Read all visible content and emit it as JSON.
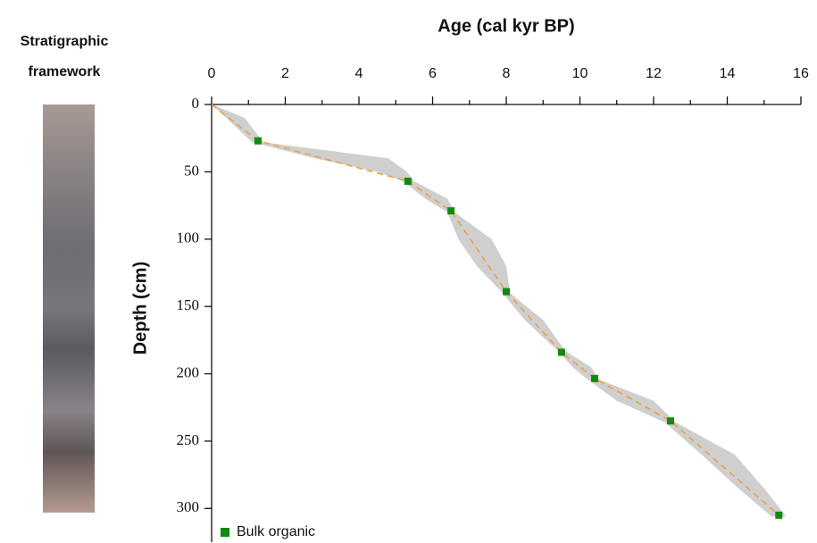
{
  "column_label": [
    "Stratigraphic",
    "framework"
  ],
  "chart_data": {
    "type": "scatter",
    "xlabel": "Age (cal kyr BP)",
    "ylabel": "Depth (cm)",
    "xlim": [
      0,
      16
    ],
    "xticks": [
      0,
      2,
      4,
      6,
      8,
      10,
      12,
      14,
      16
    ],
    "xminorticks": [
      1,
      3,
      5,
      7,
      9,
      11,
      13,
      15
    ],
    "ylim": [
      0,
      325
    ],
    "yticks": [
      0,
      50,
      100,
      150,
      200,
      250,
      300
    ],
    "y_reversed": true,
    "legend": "bottom-left",
    "series": [
      {
        "name": "Bulk organic",
        "color": "#108a10",
        "x": [
          1.26,
          5.33,
          6.5,
          8.0,
          9.5,
          10.4,
          12.46,
          15.4
        ],
        "values": [
          27,
          57,
          79,
          139,
          184,
          203.5,
          235,
          305
        ]
      },
      {
        "color": "#f0a040",
        "dashed": true,
        "x": [
          0,
          1.26,
          5.33,
          6.5,
          8.0,
          9.5,
          10.4,
          12.46,
          15.4
        ],
        "values": [
          0,
          27,
          57,
          79,
          139,
          184,
          203.5,
          235,
          305
        ]
      }
    ],
    "envelope": {
      "color": "#cfcfcf",
      "depth": [
        0,
        10,
        28,
        40,
        50,
        57,
        70,
        80,
        100,
        120,
        140,
        160,
        183,
        195,
        204,
        220,
        236,
        260,
        285,
        306
      ],
      "younger": [
        0,
        0.4,
        1.1,
        2.8,
        4.5,
        5.2,
        5.8,
        6.4,
        6.7,
        7.2,
        7.9,
        8.5,
        9.4,
        9.8,
        10.2,
        11.0,
        12.3,
        13.3,
        14.3,
        15.2
      ],
      "older": [
        0,
        0.9,
        1.4,
        4.8,
        5.3,
        5.5,
        6.4,
        6.6,
        7.6,
        8.0,
        8.1,
        9.0,
        9.6,
        10.3,
        10.5,
        12.0,
        12.6,
        14.2,
        15.0,
        15.6
      ]
    }
  }
}
